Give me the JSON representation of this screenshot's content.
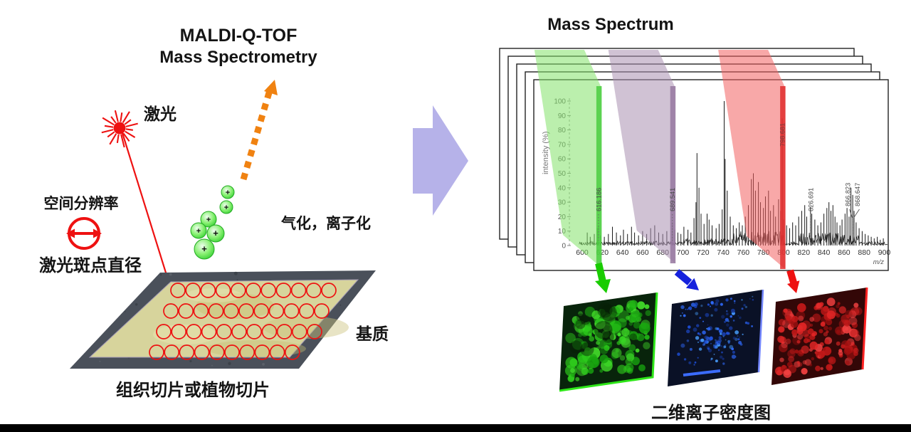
{
  "left": {
    "title_line1": "MALDI-Q-TOF",
    "title_line2": "Mass Spectrometry",
    "laser_label": "激光",
    "spatial_resolution_label": "空间分辨率",
    "laser_spot_label": "激光斑点直径",
    "ionization_label": "气化，离子化",
    "matrix_label": "基质",
    "slide_caption": "组织切片或植物切片",
    "ion_symbol": "+",
    "slide": {
      "grid_rows": [
        11,
        11,
        11,
        10
      ]
    }
  },
  "right": {
    "title": "Mass Spectrum",
    "density_caption": "二维离子密度图",
    "density_maps": [
      {
        "name": "green-ion-density-map",
        "color": "#2ecc1c"
      },
      {
        "name": "blue-ion-density-map",
        "color": "#2f6bff"
      },
      {
        "name": "red-ion-density-map",
        "color": "#e02525"
      }
    ]
  },
  "chart_data": {
    "type": "line",
    "title": "Mass Spectrum",
    "xlabel": "m/z",
    "ylabel": "intensity (%)",
    "xlim": [
      595,
      905
    ],
    "ylim": [
      0,
      100
    ],
    "x_ticks": [
      600,
      620,
      640,
      660,
      680,
      700,
      720,
      740,
      760,
      780,
      800,
      820,
      840,
      860,
      880,
      900
    ],
    "y_ticks": [
      0,
      10,
      20,
      30,
      40,
      50,
      60,
      70,
      80,
      90,
      100
    ],
    "labeled_peaks": [
      {
        "label": "616.186",
        "mz": 616.186,
        "intensity": 14,
        "band": "green"
      },
      {
        "label": "689.541",
        "mz": 689.541,
        "intensity": 16,
        "band": "purple"
      },
      {
        "label": "798.681",
        "mz": 798.681,
        "intensity": 88,
        "band": "red"
      },
      {
        "label": "826.691",
        "mz": 826.691,
        "intensity": 27
      },
      {
        "label": "866.823",
        "mz": 866.823,
        "intensity": 40
      },
      {
        "label": "868.647",
        "mz": 868.647,
        "intensity": 35
      }
    ],
    "peaks": [
      [
        605,
        9
      ],
      [
        608,
        6
      ],
      [
        612,
        8
      ],
      [
        615,
        12
      ],
      [
        618,
        7
      ],
      [
        622,
        6
      ],
      [
        626,
        8
      ],
      [
        630,
        13
      ],
      [
        634,
        9
      ],
      [
        638,
        7
      ],
      [
        641,
        11
      ],
      [
        645,
        8
      ],
      [
        649,
        13
      ],
      [
        652,
        9
      ],
      [
        656,
        7
      ],
      [
        660,
        10
      ],
      [
        664,
        8
      ],
      [
        668,
        12
      ],
      [
        672,
        14
      ],
      [
        676,
        9
      ],
      [
        680,
        8
      ],
      [
        684,
        10
      ],
      [
        692,
        11
      ],
      [
        695,
        9
      ],
      [
        698,
        8
      ],
      [
        701,
        13
      ],
      [
        705,
        11
      ],
      [
        708,
        9
      ],
      [
        711,
        19
      ],
      [
        713,
        30
      ],
      [
        714,
        64
      ],
      [
        716,
        40
      ],
      [
        718,
        22
      ],
      [
        721,
        15
      ],
      [
        724,
        22
      ],
      [
        726,
        18
      ],
      [
        729,
        14
      ],
      [
        733,
        12
      ],
      [
        736,
        15
      ],
      [
        739,
        25
      ],
      [
        741,
        100
      ],
      [
        742,
        60
      ],
      [
        744,
        38
      ],
      [
        747,
        20
      ],
      [
        750,
        14
      ],
      [
        753,
        12
      ],
      [
        756,
        16
      ],
      [
        759,
        14
      ],
      [
        762,
        20
      ],
      [
        765,
        28
      ],
      [
        768,
        46
      ],
      [
        770,
        50
      ],
      [
        772,
        38
      ],
      [
        775,
        44
      ],
      [
        777,
        30
      ],
      [
        780,
        26
      ],
      [
        782,
        34
      ],
      [
        785,
        38
      ],
      [
        787,
        24
      ],
      [
        790,
        28
      ],
      [
        792,
        20
      ],
      [
        795,
        32
      ],
      [
        797,
        24
      ],
      [
        800,
        18
      ],
      [
        803,
        14
      ],
      [
        806,
        12
      ],
      [
        809,
        16
      ],
      [
        812,
        14
      ],
      [
        815,
        20
      ],
      [
        818,
        24
      ],
      [
        821,
        28
      ],
      [
        823,
        20
      ],
      [
        828,
        22
      ],
      [
        831,
        18
      ],
      [
        834,
        14
      ],
      [
        837,
        16
      ],
      [
        840,
        22
      ],
      [
        843,
        26
      ],
      [
        845,
        30
      ],
      [
        847,
        24
      ],
      [
        849,
        28
      ],
      [
        851,
        20
      ],
      [
        853,
        16
      ],
      [
        856,
        14
      ],
      [
        858,
        18
      ],
      [
        861,
        22
      ],
      [
        863,
        26
      ],
      [
        865,
        20
      ],
      [
        870,
        24
      ],
      [
        872,
        16
      ],
      [
        875,
        12
      ],
      [
        878,
        10
      ],
      [
        881,
        8
      ],
      [
        884,
        7
      ],
      [
        887,
        6
      ],
      [
        890,
        5
      ],
      [
        893,
        6
      ],
      [
        896,
        4
      ],
      [
        899,
        5
      ]
    ],
    "highlight_bands": [
      {
        "color": "green",
        "mz": 616.186
      },
      {
        "color": "purple",
        "mz": 689.541
      },
      {
        "color": "red",
        "mz": 798.681
      }
    ],
    "legend": null,
    "grid": false
  },
  "colors": {
    "laser_red": "#ee1111",
    "orange": "#f08211",
    "flow_arrow_purple": "#b6b2e9",
    "ion_green": "#2ecc2e",
    "band_green": "#84e26a",
    "band_green_stripe": "#4acc40",
    "band_purple": "#a98fb1",
    "band_purple_stripe": "#9678a0",
    "band_red": "#f26060",
    "band_red_stripe": "#e12d2d",
    "arrow_green": "#19cc00",
    "arrow_blue": "#1622dd",
    "arrow_red": "#ee1111",
    "slide_border": "#4a505a",
    "slide_matrix": "#d7d49c",
    "spot_red": "#ee1111",
    "bottom_bar": "#000000"
  }
}
